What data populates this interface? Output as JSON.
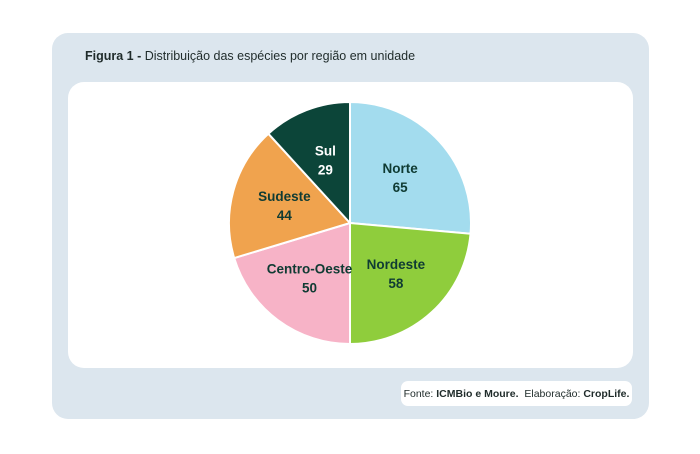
{
  "caption": {
    "label": "Figura 1 -",
    "text": "Distribuição das espécies por região em unidade"
  },
  "source": {
    "prefix": "Fonte:",
    "org": "ICMBio e Moure.",
    "elab_prefix": "Elaboração:",
    "elab": "CropLife."
  },
  "chart_data": {
    "type": "pie",
    "title": "Distribuição das espécies por região em unidade",
    "categories": [
      "Norte",
      "Nordeste",
      "Centro-Oeste",
      "Sudeste",
      "Sul"
    ],
    "values": [
      65,
      58,
      50,
      44,
      29
    ],
    "colors": [
      "#a3dcee",
      "#8fcd3c",
      "#f7b3c7",
      "#f0a34e",
      "#0c4539"
    ],
    "label_colors": [
      "#0f3b33",
      "#0f3b33",
      "#0f3b33",
      "#0f3b33",
      "#ffffff"
    ]
  }
}
